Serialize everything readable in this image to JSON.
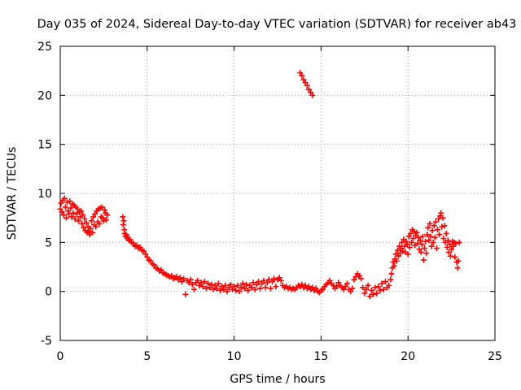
{
  "chart_data": {
    "type": "scatter",
    "title": "Day 035 of 2024, Sidereal Day-to-day VTEC variation (SDTVAR) for receiver ab43",
    "xlabel": "GPS time / hours",
    "ylabel": "SDTVAR / TECUs",
    "xlim": [
      0,
      25
    ],
    "ylim": [
      -5,
      25
    ],
    "x_ticks": [
      0,
      5,
      10,
      15,
      20,
      25
    ],
    "y_ticks": [
      -5,
      0,
      5,
      10,
      15,
      20,
      25
    ],
    "x_tick_labels": [
      "0",
      "5",
      "10",
      "15",
      "20",
      "25"
    ],
    "y_tick_labels": [
      "-5",
      "0",
      "5",
      "10",
      "15",
      "20",
      "25"
    ],
    "grid": true,
    "marker": "+",
    "color": "#ff0000",
    "series": [
      {
        "name": "SDTVAR",
        "points": [
          [
            0.0,
            8.4
          ],
          [
            0.05,
            9.0
          ],
          [
            0.1,
            8.1
          ],
          [
            0.15,
            9.3
          ],
          [
            0.2,
            7.8
          ],
          [
            0.25,
            9.5
          ],
          [
            0.3,
            8.6
          ],
          [
            0.35,
            7.5
          ],
          [
            0.4,
            9.1
          ],
          [
            0.45,
            8.2
          ],
          [
            0.5,
            7.9
          ],
          [
            0.55,
            9.2
          ],
          [
            0.6,
            8.5
          ],
          [
            0.65,
            7.6
          ],
          [
            0.7,
            8.9
          ],
          [
            0.75,
            8.0
          ],
          [
            0.8,
            8.8
          ],
          [
            0.85,
            7.4
          ],
          [
            0.9,
            8.6
          ],
          [
            0.95,
            7.9
          ],
          [
            1.0,
            8.4
          ],
          [
            1.05,
            7.2
          ],
          [
            1.1,
            8.1
          ],
          [
            1.15,
            7.6
          ],
          [
            1.2,
            8.2
          ],
          [
            1.25,
            6.9
          ],
          [
            1.3,
            7.8
          ],
          [
            1.35,
            6.5
          ],
          [
            1.4,
            7.4
          ],
          [
            1.45,
            6.2
          ],
          [
            1.5,
            7.0
          ],
          [
            1.55,
            6.0
          ],
          [
            1.6,
            6.6
          ],
          [
            1.65,
            6.1
          ],
          [
            1.7,
            5.8
          ],
          [
            1.75,
            6.4
          ],
          [
            1.8,
            7.2
          ],
          [
            1.85,
            6.0
          ],
          [
            1.9,
            7.6
          ],
          [
            1.95,
            6.8
          ],
          [
            2.0,
            7.9
          ],
          [
            2.05,
            6.6
          ],
          [
            2.1,
            8.2
          ],
          [
            2.15,
            7.1
          ],
          [
            2.2,
            8.4
          ],
          [
            2.25,
            6.9
          ],
          [
            2.3,
            8.5
          ],
          [
            2.35,
            7.6
          ],
          [
            2.4,
            8.6
          ],
          [
            2.45,
            7.5
          ],
          [
            2.5,
            7.2
          ],
          [
            2.55,
            8.3
          ],
          [
            2.6,
            8.0
          ],
          [
            2.65,
            7.3
          ],
          [
            2.7,
            7.8
          ],
          [
            3.6,
            7.6
          ],
          [
            3.62,
            6.8
          ],
          [
            3.65,
            7.2
          ],
          [
            3.68,
            6.3
          ],
          [
            3.7,
            5.9
          ],
          [
            3.75,
            5.6
          ],
          [
            3.8,
            5.8
          ],
          [
            3.85,
            5.4
          ],
          [
            3.9,
            5.5
          ],
          [
            3.95,
            5.2
          ],
          [
            4.0,
            5.3
          ],
          [
            4.1,
            5.0
          ],
          [
            4.2,
            4.9
          ],
          [
            4.3,
            4.6
          ],
          [
            4.4,
            4.7
          ],
          [
            4.5,
            4.4
          ],
          [
            4.6,
            4.5
          ],
          [
            4.7,
            4.2
          ],
          [
            4.8,
            4.1
          ],
          [
            4.9,
            3.8
          ],
          [
            5.0,
            3.5
          ],
          [
            5.1,
            3.2
          ],
          [
            5.2,
            3.1
          ],
          [
            5.3,
            2.8
          ],
          [
            5.4,
            2.7
          ],
          [
            5.5,
            2.4
          ],
          [
            5.6,
            2.3
          ],
          [
            5.7,
            2.1
          ],
          [
            5.8,
            2.2
          ],
          [
            5.9,
            1.9
          ],
          [
            6.0,
            1.8
          ],
          [
            6.1,
            1.7
          ],
          [
            6.2,
            1.6
          ],
          [
            6.3,
            1.5
          ],
          [
            6.4,
            1.6
          ],
          [
            6.5,
            1.3
          ],
          [
            6.6,
            1.4
          ],
          [
            6.7,
            1.5
          ],
          [
            6.8,
            1.2
          ],
          [
            6.9,
            1.4
          ],
          [
            7.0,
            1.0
          ],
          [
            7.1,
            1.3
          ],
          [
            7.2,
            -0.3
          ],
          [
            7.3,
            1.1
          ],
          [
            7.4,
            0.9
          ],
          [
            7.5,
            1.2
          ],
          [
            7.6,
            0.7
          ],
          [
            7.7,
            0.2
          ],
          [
            7.8,
            0.9
          ],
          [
            7.9,
            1.1
          ],
          [
            8.0,
            0.6
          ],
          [
            8.1,
            0.9
          ],
          [
            8.2,
            0.5
          ],
          [
            8.3,
            1.0
          ],
          [
            8.4,
            0.3
          ],
          [
            8.5,
            0.8
          ],
          [
            8.6,
            0.4
          ],
          [
            8.7,
            0.7
          ],
          [
            8.8,
            0.2
          ],
          [
            8.9,
            0.6
          ],
          [
            9.0,
            0.3
          ],
          [
            9.1,
            0.8
          ],
          [
            9.2,
            0.1
          ],
          [
            9.3,
            0.5
          ],
          [
            9.4,
            0.2
          ],
          [
            9.5,
            0.6
          ],
          [
            9.6,
            0.0
          ],
          [
            9.7,
            0.4
          ],
          [
            9.8,
            0.7
          ],
          [
            9.9,
            0.2
          ],
          [
            10.0,
            0.5
          ],
          [
            10.1,
            0.1
          ],
          [
            10.2,
            0.6
          ],
          [
            10.3,
            0.0
          ],
          [
            10.4,
            0.4
          ],
          [
            10.5,
            0.8
          ],
          [
            10.6,
            0.3
          ],
          [
            10.7,
            0.7
          ],
          [
            10.8,
            0.1
          ],
          [
            10.9,
            0.6
          ],
          [
            11.0,
            0.4
          ],
          [
            11.1,
            0.9
          ],
          [
            11.2,
            0.2
          ],
          [
            11.3,
            0.7
          ],
          [
            11.4,
            1.0
          ],
          [
            11.5,
            0.3
          ],
          [
            11.6,
            0.8
          ],
          [
            11.7,
            1.1
          ],
          [
            11.8,
            0.4
          ],
          [
            11.9,
            0.9
          ],
          [
            12.0,
            1.2
          ],
          [
            12.1,
            0.3
          ],
          [
            12.2,
            1.0
          ],
          [
            12.3,
            1.3
          ],
          [
            12.4,
            0.5
          ],
          [
            12.5,
            1.2
          ],
          [
            12.6,
            1.4
          ],
          [
            12.7,
            1.1
          ],
          [
            12.8,
            0.6
          ],
          [
            12.9,
            0.4
          ],
          [
            13.0,
            0.5
          ],
          [
            13.1,
            0.3
          ],
          [
            13.2,
            0.4
          ],
          [
            13.3,
            0.2
          ],
          [
            13.4,
            0.3
          ],
          [
            13.5,
            0.2
          ],
          [
            13.6,
            0.4
          ],
          [
            13.7,
            0.6
          ],
          [
            13.8,
            0.5
          ],
          [
            13.9,
            0.7
          ],
          [
            14.0,
            0.4
          ],
          [
            14.1,
            0.6
          ],
          [
            14.2,
            0.3
          ],
          [
            14.3,
            0.5
          ],
          [
            14.4,
            0.2
          ],
          [
            14.5,
            0.4
          ],
          [
            14.6,
            0.1
          ],
          [
            14.7,
            0.3
          ],
          [
            14.8,
            0.0
          ],
          [
            14.9,
            -0.1
          ],
          [
            15.0,
            0.1
          ],
          [
            15.1,
            0.2
          ],
          [
            15.2,
            0.5
          ],
          [
            15.3,
            0.7
          ],
          [
            15.4,
            0.9
          ],
          [
            15.5,
            1.1
          ],
          [
            15.6,
            0.8
          ],
          [
            15.7,
            0.6
          ],
          [
            15.8,
            0.3
          ],
          [
            15.9,
            0.5
          ],
          [
            16.0,
            0.9
          ],
          [
            16.1,
            0.6
          ],
          [
            16.2,
            0.4
          ],
          [
            16.3,
            0.2
          ],
          [
            16.4,
            0.5
          ],
          [
            16.5,
            0.8
          ],
          [
            16.6,
            0.2
          ],
          [
            16.7,
            0.0
          ],
          [
            16.8,
            0.3
          ],
          [
            16.9,
            1.2
          ],
          [
            17.0,
            1.5
          ],
          [
            17.1,
            1.8
          ],
          [
            17.2,
            1.6
          ],
          [
            17.3,
            1.3
          ],
          [
            17.4,
            0.4
          ],
          [
            17.5,
            -0.2
          ],
          [
            17.6,
            0.2
          ],
          [
            17.7,
            0.6
          ],
          [
            17.8,
            -0.5
          ],
          [
            17.9,
            0.1
          ],
          [
            18.0,
            -0.3
          ],
          [
            18.1,
            0.4
          ],
          [
            18.2,
            -0.2
          ],
          [
            18.3,
            0.5
          ],
          [
            18.4,
            0.1
          ],
          [
            18.5,
            0.8
          ],
          [
            18.6,
            0.2
          ],
          [
            18.7,
            1.0
          ],
          [
            18.8,
            0.4
          ],
          [
            18.9,
            0.6
          ],
          [
            19.0,
            1.2
          ],
          [
            19.05,
            1.8
          ],
          [
            19.1,
            2.4
          ],
          [
            19.15,
            3.0
          ],
          [
            19.2,
            2.6
          ],
          [
            19.25,
            3.3
          ],
          [
            19.3,
            3.8
          ],
          [
            19.35,
            3.1
          ],
          [
            19.4,
            4.2
          ],
          [
            19.45,
            3.6
          ],
          [
            19.5,
            4.6
          ],
          [
            19.55,
            3.9
          ],
          [
            19.6,
            4.4
          ],
          [
            19.65,
            5.0
          ],
          [
            19.7,
            4.1
          ],
          [
            19.75,
            5.3
          ],
          [
            19.8,
            4.6
          ],
          [
            19.85,
            4.0
          ],
          [
            19.9,
            5.1
          ],
          [
            19.95,
            4.8
          ],
          [
            20.0,
            3.8
          ],
          [
            20.05,
            5.6
          ],
          [
            20.1,
            4.5
          ],
          [
            20.15,
            5.9
          ],
          [
            20.2,
            5.0
          ],
          [
            20.25,
            6.3
          ],
          [
            20.3,
            5.4
          ],
          [
            20.35,
            6.1
          ],
          [
            20.4,
            4.7
          ],
          [
            20.45,
            5.7
          ],
          [
            20.5,
            6.0
          ],
          [
            20.55,
            4.9
          ],
          [
            20.6,
            5.5
          ],
          [
            20.65,
            4.3
          ],
          [
            20.7,
            5.2
          ],
          [
            20.75,
            4.0
          ],
          [
            20.8,
            4.8
          ],
          [
            20.85,
            5.6
          ],
          [
            20.9,
            3.2
          ],
          [
            20.95,
            4.4
          ],
          [
            21.0,
            5.1
          ],
          [
            21.05,
            3.9
          ],
          [
            21.1,
            5.8
          ],
          [
            21.15,
            6.5
          ],
          [
            21.2,
            5.2
          ],
          [
            21.25,
            6.9
          ],
          [
            21.3,
            5.6
          ],
          [
            21.35,
            4.6
          ],
          [
            21.4,
            6.2
          ],
          [
            21.45,
            5.0
          ],
          [
            21.5,
            6.7
          ],
          [
            21.55,
            5.5
          ],
          [
            21.6,
            7.1
          ],
          [
            21.65,
            4.4
          ],
          [
            21.7,
            6.3
          ],
          [
            21.75,
            7.4
          ],
          [
            21.8,
            5.8
          ],
          [
            21.85,
            7.7
          ],
          [
            21.9,
            8.0
          ],
          [
            21.95,
            6.6
          ],
          [
            22.0,
            7.5
          ],
          [
            22.05,
            5.4
          ],
          [
            22.1,
            6.7
          ],
          [
            22.15,
            5.0
          ],
          [
            22.2,
            5.9
          ],
          [
            22.25,
            4.5
          ],
          [
            22.3,
            5.2
          ],
          [
            22.35,
            4.0
          ],
          [
            22.4,
            4.8
          ],
          [
            22.45,
            3.6
          ],
          [
            22.5,
            4.3
          ],
          [
            22.55,
            5.1
          ],
          [
            22.6,
            4.6
          ],
          [
            22.65,
            5.0
          ],
          [
            22.7,
            3.5
          ],
          [
            22.75,
            4.9
          ],
          [
            22.8,
            3.0
          ],
          [
            22.85,
            2.4
          ],
          [
            22.9,
            3.1
          ],
          [
            22.95,
            5.0
          ],
          [
            13.8,
            22.3
          ],
          [
            13.9,
            22.0
          ],
          [
            14.0,
            21.6
          ],
          [
            14.1,
            21.3
          ],
          [
            14.2,
            21.0
          ],
          [
            14.3,
            20.6
          ],
          [
            14.4,
            20.3
          ],
          [
            14.5,
            20.0
          ]
        ]
      }
    ]
  }
}
